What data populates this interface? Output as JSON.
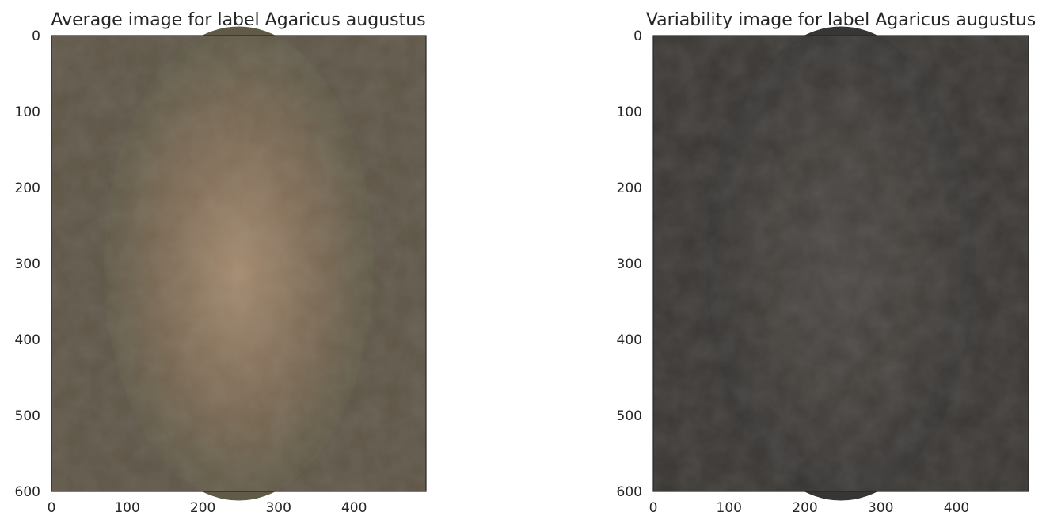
{
  "chart_data": [
    {
      "type": "heatmap",
      "title": "Average image for label Agaricus augustus",
      "xlim": [
        0,
        495
      ],
      "ylim": [
        600,
        0
      ],
      "xticks": [
        0,
        100,
        200,
        300,
        400
      ],
      "yticks": [
        0,
        100,
        200,
        300,
        400,
        500,
        600
      ],
      "grid": false,
      "colors": {
        "background": "#5e5546",
        "center": "#a48a6e",
        "mid": "#7d6a54",
        "edge": "#4f5040"
      }
    },
    {
      "type": "heatmap",
      "title": "Variability image for label Agaricus augustus",
      "xlim": [
        0,
        495
      ],
      "ylim": [
        600,
        0
      ],
      "xticks": [
        0,
        100,
        200,
        300,
        400
      ],
      "yticks": [
        0,
        100,
        200,
        300,
        400,
        500,
        600
      ],
      "grid": false,
      "colors": {
        "background": "#3a3734",
        "center": "#4a4744",
        "mid": "#433f3b",
        "edge": "#313030"
      }
    }
  ]
}
